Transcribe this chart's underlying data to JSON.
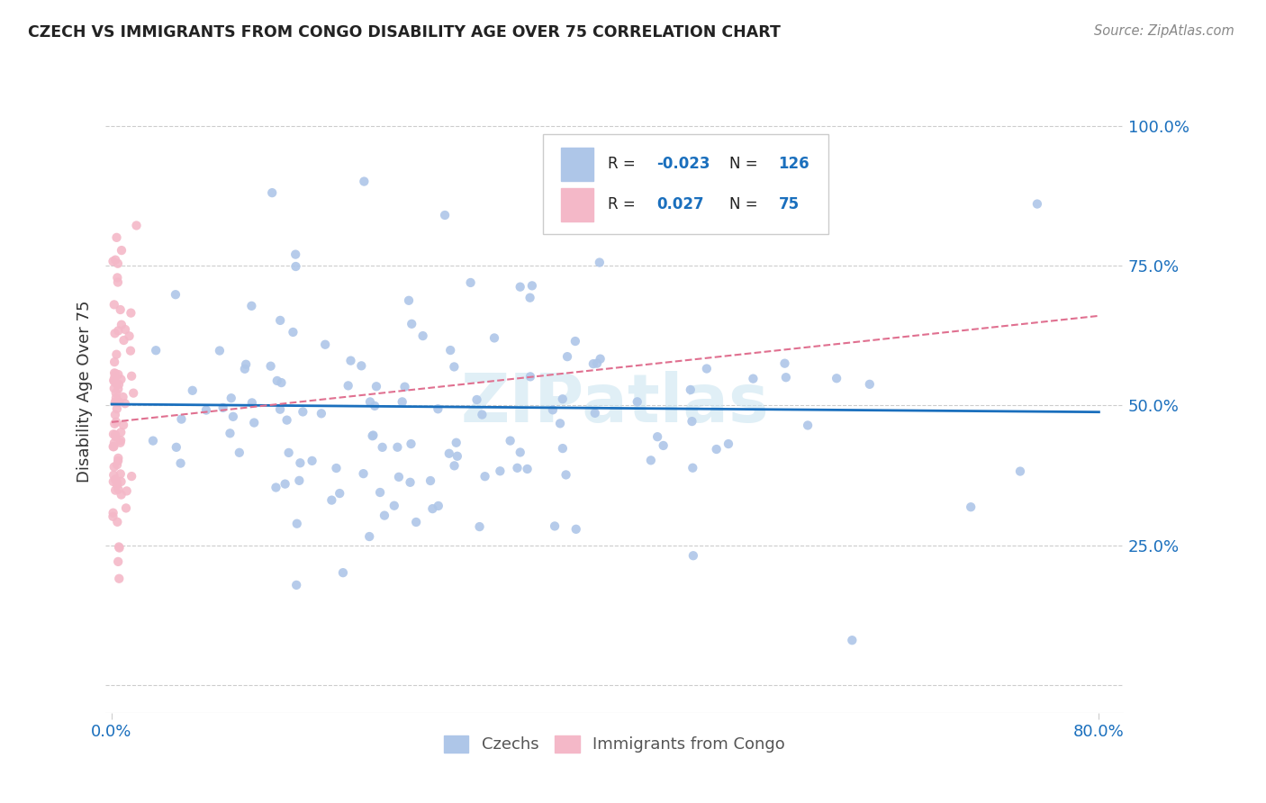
{
  "title": "CZECH VS IMMIGRANTS FROM CONGO DISABILITY AGE OVER 75 CORRELATION CHART",
  "source": "Source: ZipAtlas.com",
  "ylabel": "Disability Age Over 75",
  "watermark": "ZIPatlas",
  "czech_R": -0.023,
  "czech_N": 126,
  "congo_R": 0.027,
  "congo_N": 75,
  "czech_color": "#aec6e8",
  "congo_color": "#f4b8c8",
  "czech_line_color": "#1a6fbd",
  "congo_line_color": "#e07090",
  "yticks": [
    0.0,
    0.25,
    0.5,
    0.75,
    1.0
  ],
  "ytick_labels": [
    "",
    "25.0%",
    "50.0%",
    "75.0%",
    "100.0%"
  ],
  "xlim": [
    0.0,
    0.8
  ],
  "ylim": [
    -0.05,
    1.1
  ],
  "grid_color": "#cccccc",
  "tick_color": "#1a6fbd",
  "title_color": "#222222",
  "source_color": "#888888",
  "ylabel_color": "#333333",
  "watermark_color": "#cce5f0",
  "legend_label1": "Czechs",
  "legend_label2": "Immigrants from Congo"
}
